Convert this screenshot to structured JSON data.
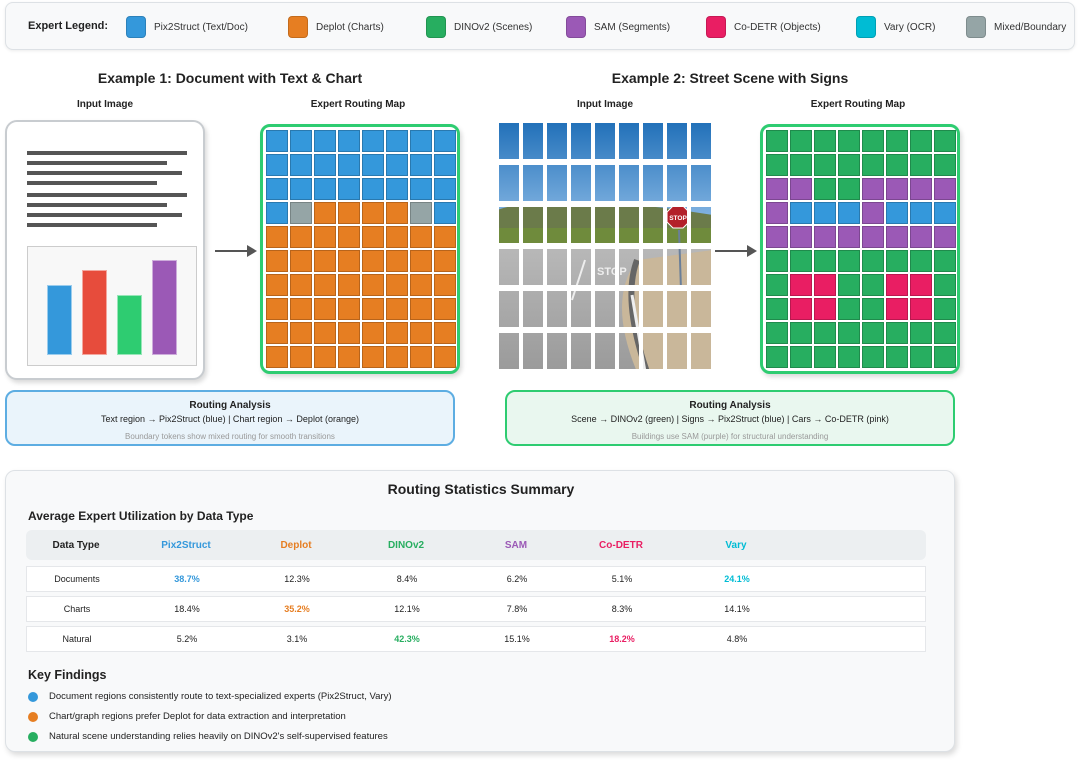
{
  "legend": {
    "title": "Expert Legend:",
    "items": [
      {
        "label": "Pix2Struct (Text/Doc)",
        "color": "#3498db"
      },
      {
        "label": "Deplot (Charts)",
        "color": "#e67e22"
      },
      {
        "label": "DINOv2 (Scenes)",
        "color": "#27ae60"
      },
      {
        "label": "SAM (Segments)",
        "color": "#9b59b6"
      },
      {
        "label": "Co-DETR (Objects)",
        "color": "#e91e63"
      },
      {
        "label": "Vary (OCR)",
        "color": "#00bcd4"
      },
      {
        "label": "Mixed/Boundary",
        "color": "#95a5a6"
      }
    ]
  },
  "example1": {
    "title": "Example 1: Document with Text & Chart",
    "input_label": "Input Image",
    "map_label": "Expert Routing Map",
    "grid": [
      "BBBBBBBB",
      "BBBBBBBB",
      "BBBBBBBB",
      "BMOOOOMB",
      "OOOOOOOO",
      "OOOOOOOO",
      "OOOOOOOO",
      "OOOOOOOO",
      "OOOOOOOO",
      "OOOOOOOO"
    ],
    "analysis": {
      "heading": "Routing Analysis",
      "text": "Text region → Pix2Struct (blue) | Chart region → Deplot (orange)",
      "note": "Boundary tokens show mixed routing for smooth transitions"
    }
  },
  "example2": {
    "title": "Example 2: Street Scene with Signs",
    "input_label": "Input Image",
    "map_label": "Expert Routing Map",
    "grid": [
      "GGGGGGGG",
      "GGGGGGGG",
      "PPGGPPPP",
      "PBBBPBBB",
      "PPPPPPPP",
      "GGGGGGGG",
      "GRRGGRRG",
      "GRRGGRRG",
      "GGGGGGGG",
      "GGGGGGGG"
    ],
    "sign_text": "STOP",
    "road_text": "STOP",
    "analysis": {
      "heading": "Routing Analysis",
      "text": "Scene → DINOv2 (green) | Signs → Pix2Struct (blue) | Cars → Co-DETR (pink)",
      "note": "Buildings use SAM (purple) for structural understanding"
    }
  },
  "grid_colors": {
    "B": "#3498db",
    "O": "#e67e22",
    "G": "#27ae60",
    "P": "#9b59b6",
    "R": "#e91e63",
    "M": "#95a5a6"
  },
  "stats": {
    "title": "Routing Statistics Summary",
    "subtitle": "Average Expert Utilization by Data Type",
    "columns": [
      {
        "label": "Data Type",
        "color": "#222"
      },
      {
        "label": "Pix2Struct",
        "color": "#3498db"
      },
      {
        "label": "Deplot",
        "color": "#e67e22"
      },
      {
        "label": "DINOv2",
        "color": "#27ae60"
      },
      {
        "label": "SAM",
        "color": "#9b59b6"
      },
      {
        "label": "Co-DETR",
        "color": "#e91e63"
      },
      {
        "label": "Vary",
        "color": "#00bcd4"
      }
    ],
    "rows": [
      {
        "cells": [
          "Documents",
          "38.7%",
          "12.3%",
          "8.4%",
          "6.2%",
          "5.1%",
          "24.1%"
        ],
        "highlight": [
          1,
          6
        ]
      },
      {
        "cells": [
          "Charts",
          "18.4%",
          "35.2%",
          "12.1%",
          "7.8%",
          "8.3%",
          "14.1%"
        ],
        "highlight": [
          2
        ]
      },
      {
        "cells": [
          "Natural",
          "5.2%",
          "3.1%",
          "42.3%",
          "15.1%",
          "18.2%",
          "4.8%"
        ],
        "highlight": [
          3,
          5
        ]
      }
    ]
  },
  "findings": {
    "title": "Key Findings",
    "items": [
      {
        "text": "Document regions consistently route to text-specialized experts (Pix2Struct, Vary)",
        "color": "#3498db"
      },
      {
        "text": "Chart/graph regions prefer Deplot for data extraction and interpretation",
        "color": "#e67e22"
      },
      {
        "text": "Natural scene understanding relies heavily on DINOv2's self-supervised features",
        "color": "#27ae60"
      }
    ]
  }
}
